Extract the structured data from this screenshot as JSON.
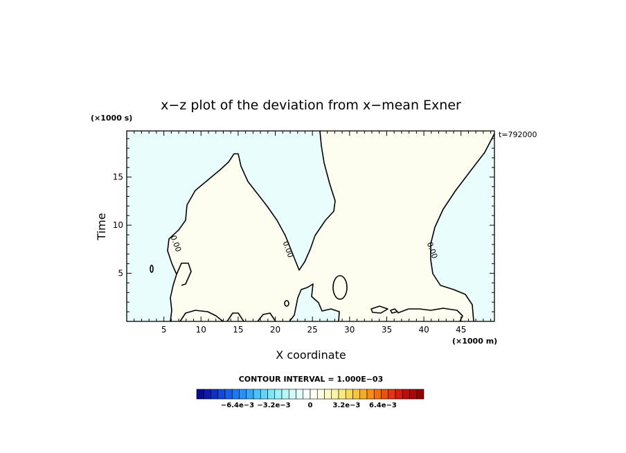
{
  "chart_data": {
    "type": "contour",
    "title": "x−z plot of the deviation from x−mean Exner",
    "xlabel": "X coordinate",
    "ylabel": "Time",
    "x_unit": "(×1000 m)",
    "y_unit": "(×1000 s)",
    "time_stamp": "t=792000",
    "xlim": [
      0,
      49.5
    ],
    "ylim": [
      0,
      19.8
    ],
    "x_ticks": [
      5,
      10,
      15,
      20,
      25,
      30,
      35,
      40,
      45
    ],
    "y_ticks": [
      5,
      10,
      15
    ],
    "contour_interval_text": "CONTOUR INTERVAL = 1.000E−03",
    "contour_labels": [
      {
        "text": "0.00",
        "x": 6.3,
        "y": 8.0
      },
      {
        "text": "0.00",
        "x": 21.4,
        "y": 7.4
      },
      {
        "text": "0.00",
        "x": 40.8,
        "y": 7.3
      }
    ],
    "regions": [
      {
        "sign": "negative",
        "color": "#eafdfd"
      },
      {
        "sign": "positive",
        "color": "#fdfdf0"
      }
    ],
    "colorbar": {
      "tick_labels": [
        "−6.4e−3",
        "−3.2e−3",
        "0",
        "3.2e−3",
        "6.4e−3"
      ],
      "tick_values": [
        -6.4,
        -3.2,
        0,
        3.2,
        6.4
      ],
      "range": [
        -10,
        10
      ],
      "colors": [
        "#0a0a8c",
        "#0d1ba6",
        "#1030c0",
        "#1448d8",
        "#1a60e8",
        "#2078f0",
        "#2a90f4",
        "#38a8f6",
        "#4ec0f8",
        "#66d4f8",
        "#80e4f8",
        "#9cf0f8",
        "#b8f6f8",
        "#d2fafa",
        "#e8fdfd",
        "#f6ffff",
        "#fffff6",
        "#fdfde6",
        "#fcfac8",
        "#fbf4a6",
        "#fae880",
        "#f9d860",
        "#f8c440",
        "#f6ac28",
        "#f49018",
        "#f07010",
        "#ea5010",
        "#e23410",
        "#d41c10",
        "#c00c0c",
        "#a80808",
        "#900404"
      ]
    }
  }
}
